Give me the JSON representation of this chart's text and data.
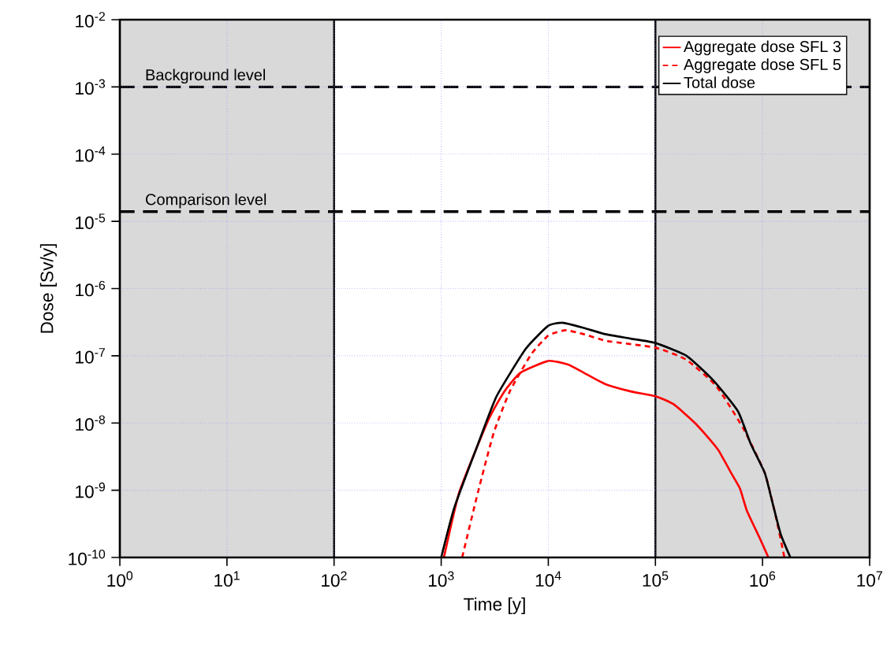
{
  "chart_data": {
    "type": "line",
    "xlabel": "Time [y]",
    "ylabel": "Dose [Sv/y]",
    "log": "xy",
    "grid": true,
    "legend": "top right",
    "xlim": [
      1,
      10000000
    ],
    "ylim": [
      1e-10,
      0.01
    ],
    "xticks": [
      {
        "value": 1,
        "label": "10$^{0}$"
      },
      {
        "value": 10,
        "label": "10$^{1}$"
      },
      {
        "value": 100,
        "label": "10$^{2}$"
      },
      {
        "value": 1000,
        "label": "10$^{3}$"
      },
      {
        "value": 10000,
        "label": "10$^{4}$"
      },
      {
        "value": 100000,
        "label": "10$^{5}$"
      },
      {
        "value": 1000000,
        "label": "10$^{6}$"
      },
      {
        "value": 10000000,
        "label": "10$^{7}$"
      }
    ],
    "yticks": [
      {
        "value": 1e-10,
        "label": "10$^{-10}$"
      },
      {
        "value": 1e-09,
        "label": "10$^{-9}$"
      },
      {
        "value": 1e-08,
        "label": "10$^{-8}$"
      },
      {
        "value": 1e-07,
        "label": "10$^{-7}$"
      },
      {
        "value": 1e-06,
        "label": "10$^{-6}$"
      },
      {
        "value": 1e-05,
        "label": "10$^{-5}$"
      },
      {
        "value": 0.0001,
        "label": "10$^{-4}$"
      },
      {
        "value": 0.001,
        "label": "10$^{-3}$"
      },
      {
        "value": 0.01,
        "label": "10$^{-2}$"
      }
    ],
    "series": [
      {
        "name": "Aggregate dose SFL 3",
        "color": "#ff0000",
        "line_style": "solid",
        "x": [
          1060,
          1480,
          2750,
          3890,
          5500,
          10000,
          15300,
          21400,
          33900,
          58900,
          100000,
          148000,
          234000,
          331000,
          389000,
          525000,
          617000,
          716000,
          933000,
          1135000
        ],
        "values": [
          1e-10,
          9.5e-10,
          1.1e-08,
          2.95e-08,
          5.6e-08,
          8.4e-08,
          7.4e-08,
          5.6e-08,
          3.8e-08,
          2.95e-08,
          2.5e-08,
          1.9e-08,
          1e-08,
          5.4e-09,
          3.9e-09,
          1.66e-09,
          1.05e-09,
          4.9e-10,
          2e-10,
          1e-10
        ]
      },
      {
        "name": "Aggregate dose SFL 5",
        "color": "#ff0000",
        "line_style": "dashed",
        "x": [
          1570,
          2210,
          3090,
          4370,
          6920,
          10000,
          14500,
          21400,
          35500,
          100000,
          195000,
          372000,
          661000,
          1050000,
          1320000,
          1600000
        ],
        "values": [
          1e-10,
          9.5e-10,
          7.1e-09,
          2.95e-08,
          1.05e-07,
          2e-07,
          2.4e-07,
          2.1e-07,
          1.66e-07,
          1.32e-07,
          8.7e-08,
          3.5e-08,
          8.3e-09,
          1.8e-09,
          4.3e-10,
          1e-10
        ]
      },
      {
        "name": "Total dose",
        "color": "#000000",
        "line_style": "solid",
        "x": [
          1000,
          1330,
          2210,
          3290,
          6140,
          10000,
          13600,
          21400,
          33900,
          58900,
          100000,
          195000,
          347000,
          589000,
          776000,
          1050000,
          1230000,
          1480000,
          1820000
        ],
        "values": [
          1e-10,
          5.6e-10,
          4.9e-09,
          2.5e-08,
          1.26e-07,
          2.8e-07,
          3.1e-07,
          2.6e-07,
          2.1e-07,
          1.8e-07,
          1.55e-07,
          1e-07,
          4.3e-08,
          1.5e-08,
          4.9e-09,
          1.8e-09,
          6.8e-10,
          2.2e-10,
          1e-10
        ]
      }
    ],
    "ref_lines": [
      {
        "axis": "y",
        "value": 0.001,
        "label": "Background level",
        "color": "#000000",
        "line_style": "dashed"
      },
      {
        "axis": "y",
        "value": 1.4e-05,
        "label": "Comparison level",
        "color": "#000000",
        "line_style": "dashed"
      }
    ],
    "bands": [
      {
        "axis": "x",
        "from": 1,
        "to": 100,
        "color": "#d9d9d9"
      },
      {
        "axis": "x",
        "from": 100000,
        "to": 10000000,
        "color": "#d9d9d9"
      }
    ]
  }
}
